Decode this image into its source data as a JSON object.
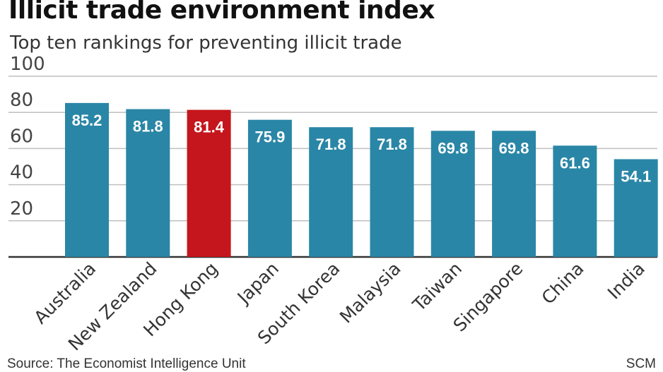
{
  "chart_data": {
    "type": "bar",
    "title": "Illicit trade environment index",
    "subtitle": "Top ten rankings for preventing illicit trade",
    "categories": [
      "Australia",
      "New Zealand",
      "Hong Kong",
      "Japan",
      "South Korea",
      "Malaysia",
      "Taiwan",
      "Singapore",
      "China",
      "India"
    ],
    "values": [
      85.2,
      81.8,
      81.4,
      75.9,
      71.8,
      71.8,
      69.8,
      69.8,
      61.6,
      54.1
    ],
    "highlight": "Hong Kong",
    "ylim": [
      0,
      100
    ],
    "yticks": [
      20,
      40,
      60,
      80,
      100
    ],
    "xlabel": "",
    "ylabel": "",
    "grid": true,
    "colors": {
      "bar": "#2a86a6",
      "highlight": "#c4161c",
      "grid": "#bfbfbf",
      "axis": "#333333",
      "bar_label": "#ffffff"
    }
  },
  "footer": {
    "source": "Source: The Economist Intelligence Unit",
    "credit": "SCM"
  }
}
